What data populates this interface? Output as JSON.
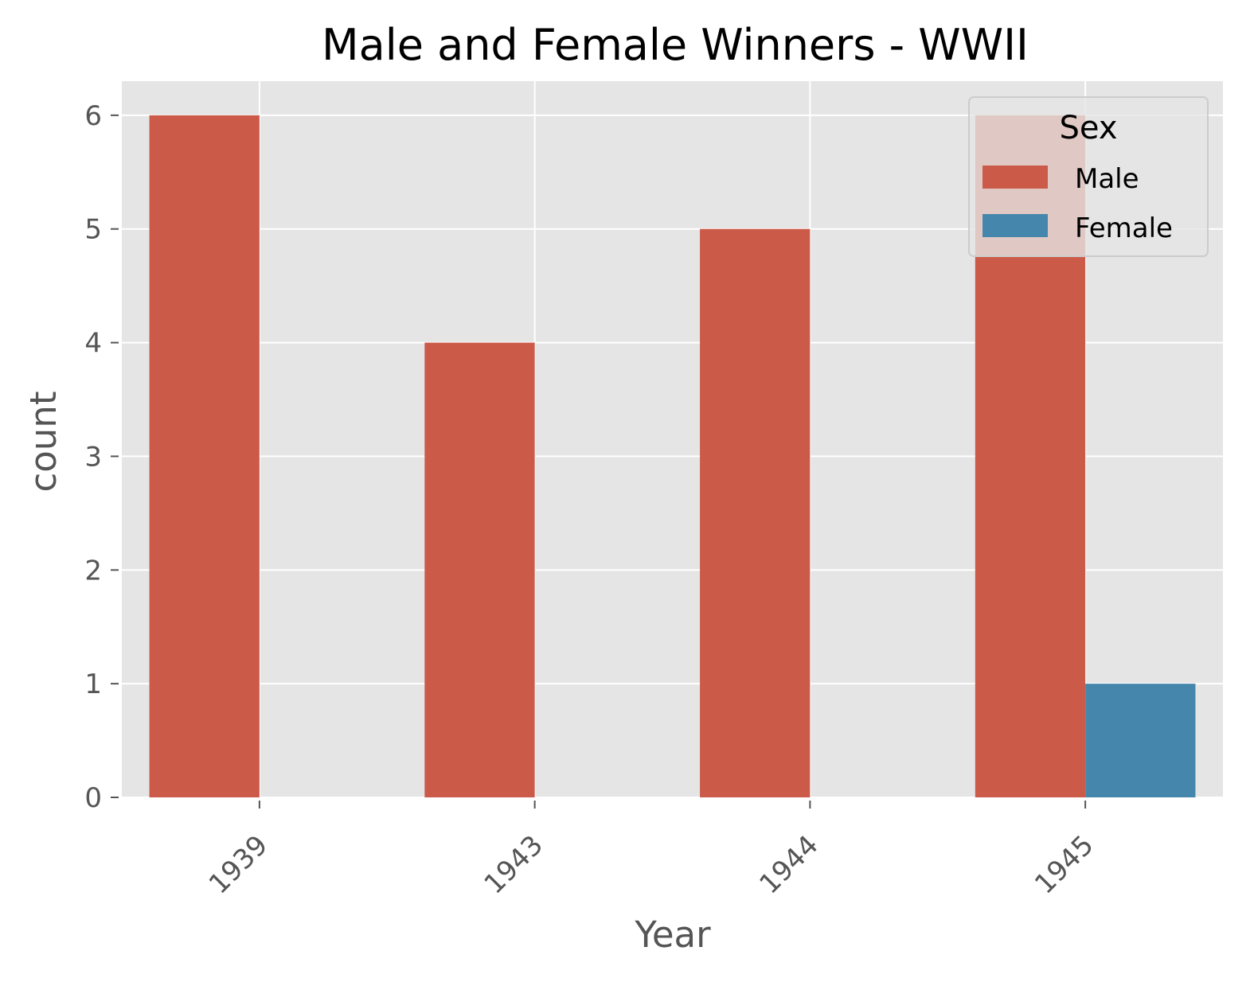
{
  "chart_data": {
    "type": "bar",
    "title": "Male and Female Winners - WWII",
    "xlabel": "Year",
    "ylabel": "count",
    "categories": [
      "1939",
      "1943",
      "1944",
      "1945"
    ],
    "series": [
      {
        "name": "Male",
        "values": [
          6,
          4,
          5,
          6
        ],
        "color": "#cc5a49"
      },
      {
        "name": "Female",
        "values": [
          0,
          0,
          0,
          1
        ],
        "color": "#4586ac"
      }
    ],
    "ylim": [
      0,
      6.3
    ],
    "yticks": [
      "0",
      "1",
      "2",
      "3",
      "4",
      "5",
      "6"
    ],
    "grid": true,
    "legend": {
      "title": "Sex",
      "position": "top-right"
    },
    "background": "#e5e5e5",
    "gridcolor": "#ffffff"
  }
}
